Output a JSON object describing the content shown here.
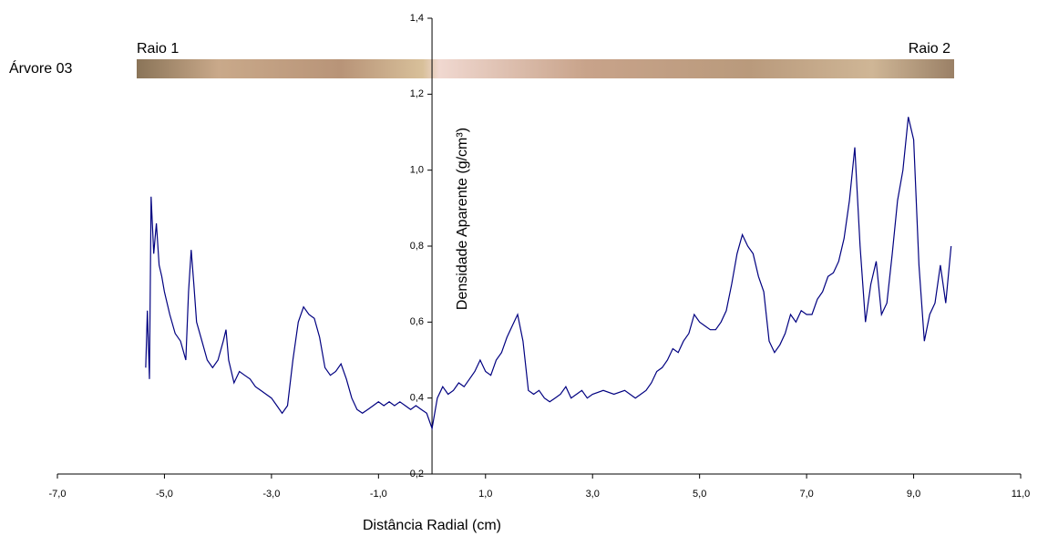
{
  "chart_data": {
    "type": "line",
    "annotations": [
      "Árvore 03",
      "Raio 1",
      "Raio 2"
    ],
    "x_label": "Distância Radial (cm)",
    "y_label": "Densidade Aparente (g/cm³)",
    "color": "#000080",
    "yaxis_crosses": 0,
    "xlim": [
      -7,
      11
    ],
    "ylim": [
      0.2,
      1.4
    ],
    "xticks": [
      {
        "value": -7,
        "label": "-7,0"
      },
      {
        "value": -5,
        "label": "-5,0"
      },
      {
        "value": -3,
        "label": "-3,0"
      },
      {
        "value": -1,
        "label": "-1,0"
      },
      {
        "value": 1,
        "label": "1,0"
      },
      {
        "value": 3,
        "label": "3,0"
      },
      {
        "value": 5,
        "label": "5,0"
      },
      {
        "value": 7,
        "label": "7,0"
      },
      {
        "value": 9,
        "label": "9,0"
      },
      {
        "value": 11,
        "label": "11,0"
      }
    ],
    "yticks": [
      {
        "value": 0.2,
        "label": "0,2"
      },
      {
        "value": 0.4,
        "label": "0,4"
      },
      {
        "value": 0.6,
        "label": "0,6"
      },
      {
        "value": 0.8,
        "label": "0,8"
      },
      {
        "value": 1.0,
        "label": "1,0"
      },
      {
        "value": 1.2,
        "label": "1,2"
      },
      {
        "value": 1.4,
        "label": "1,4"
      }
    ],
    "x": [
      -5.35,
      -5.32,
      -5.28,
      -5.25,
      -5.2,
      -5.15,
      -5.1,
      -5.05,
      -5.0,
      -4.9,
      -4.8,
      -4.7,
      -4.6,
      -4.55,
      -4.5,
      -4.45,
      -4.4,
      -4.3,
      -4.2,
      -4.1,
      -4.0,
      -3.9,
      -3.85,
      -3.8,
      -3.7,
      -3.6,
      -3.5,
      -3.4,
      -3.3,
      -3.2,
      -3.1,
      -3.0,
      -2.9,
      -2.8,
      -2.7,
      -2.6,
      -2.5,
      -2.4,
      -2.3,
      -2.2,
      -2.1,
      -2.0,
      -1.9,
      -1.8,
      -1.7,
      -1.6,
      -1.5,
      -1.4,
      -1.3,
      -1.2,
      -1.1,
      -1.0,
      -0.9,
      -0.8,
      -0.7,
      -0.6,
      -0.5,
      -0.4,
      -0.3,
      -0.2,
      -0.1,
      0.0,
      0.1,
      0.2,
      0.3,
      0.4,
      0.5,
      0.6,
      0.7,
      0.8,
      0.9,
      1.0,
      1.1,
      1.2,
      1.3,
      1.4,
      1.5,
      1.6,
      1.7,
      1.8,
      1.9,
      2.0,
      2.1,
      2.2,
      2.3,
      2.4,
      2.5,
      2.6,
      2.7,
      2.8,
      2.9,
      3.0,
      3.2,
      3.4,
      3.6,
      3.8,
      4.0,
      4.1,
      4.2,
      4.3,
      4.4,
      4.5,
      4.6,
      4.7,
      4.8,
      4.9,
      5.0,
      5.1,
      5.2,
      5.3,
      5.4,
      5.5,
      5.6,
      5.7,
      5.8,
      5.9,
      6.0,
      6.1,
      6.2,
      6.3,
      6.4,
      6.5,
      6.6,
      6.7,
      6.8,
      6.9,
      7.0,
      7.1,
      7.2,
      7.3,
      7.4,
      7.5,
      7.6,
      7.7,
      7.8,
      7.9,
      8.0,
      8.1,
      8.2,
      8.3,
      8.4,
      8.5,
      8.6,
      8.7,
      8.8,
      8.9,
      9.0,
      9.1,
      9.2,
      9.3,
      9.4,
      9.5,
      9.6,
      9.7
    ],
    "values": [
      0.48,
      0.63,
      0.45,
      0.93,
      0.78,
      0.86,
      0.75,
      0.72,
      0.68,
      0.62,
      0.57,
      0.55,
      0.5,
      0.68,
      0.79,
      0.7,
      0.6,
      0.55,
      0.5,
      0.48,
      0.5,
      0.55,
      0.58,
      0.5,
      0.44,
      0.47,
      0.46,
      0.45,
      0.43,
      0.42,
      0.41,
      0.4,
      0.38,
      0.36,
      0.38,
      0.5,
      0.6,
      0.64,
      0.62,
      0.61,
      0.56,
      0.48,
      0.46,
      0.47,
      0.49,
      0.45,
      0.4,
      0.37,
      0.36,
      0.37,
      0.38,
      0.39,
      0.38,
      0.39,
      0.38,
      0.39,
      0.38,
      0.37,
      0.38,
      0.37,
      0.36,
      0.32,
      0.4,
      0.43,
      0.41,
      0.42,
      0.44,
      0.43,
      0.45,
      0.47,
      0.5,
      0.47,
      0.46,
      0.5,
      0.52,
      0.56,
      0.59,
      0.62,
      0.55,
      0.42,
      0.41,
      0.42,
      0.4,
      0.39,
      0.4,
      0.41,
      0.43,
      0.4,
      0.41,
      0.42,
      0.4,
      0.41,
      0.42,
      0.41,
      0.42,
      0.4,
      0.42,
      0.44,
      0.47,
      0.48,
      0.5,
      0.53,
      0.52,
      0.55,
      0.57,
      0.62,
      0.6,
      0.59,
      0.58,
      0.58,
      0.6,
      0.63,
      0.7,
      0.78,
      0.83,
      0.8,
      0.78,
      0.72,
      0.68,
      0.55,
      0.52,
      0.54,
      0.57,
      0.62,
      0.6,
      0.63,
      0.62,
      0.62,
      0.66,
      0.68,
      0.72,
      0.73,
      0.76,
      0.82,
      0.92,
      1.06,
      0.8,
      0.6,
      0.7,
      0.76,
      0.62,
      0.65,
      0.78,
      0.92,
      1.0,
      1.14,
      1.08,
      0.75,
      0.55,
      0.62,
      0.65,
      0.75,
      0.65,
      0.8
    ]
  }
}
